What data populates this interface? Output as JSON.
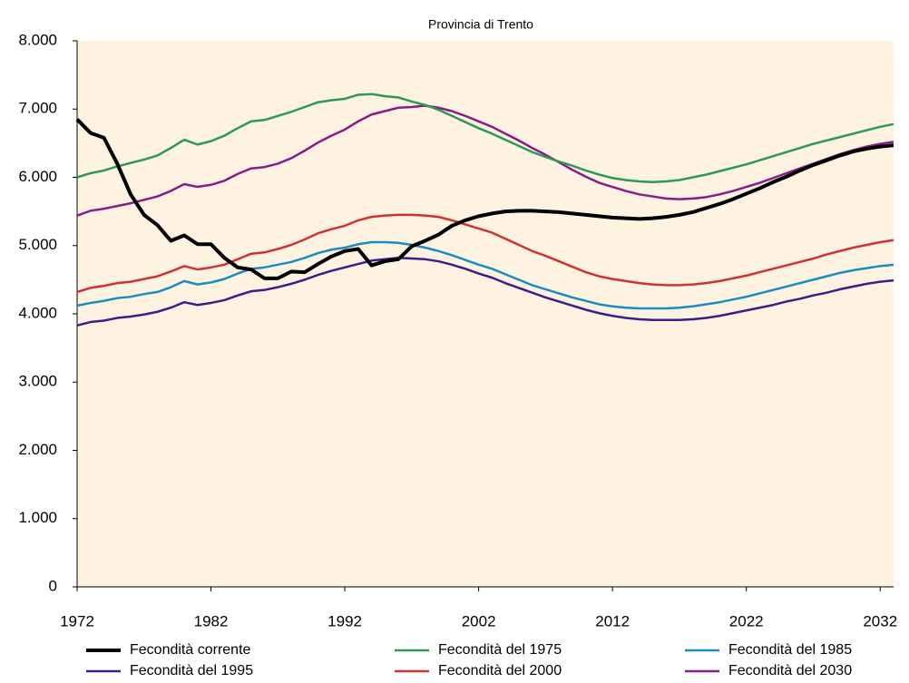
{
  "chart_data": {
    "type": "line",
    "title": "Provincia di Trento",
    "x": [
      1972,
      1973,
      1974,
      1975,
      1976,
      1977,
      1978,
      1979,
      1980,
      1981,
      1982,
      1983,
      1984,
      1985,
      1986,
      1987,
      1988,
      1989,
      1990,
      1991,
      1992,
      1993,
      1994,
      1995,
      1996,
      1997,
      1998,
      1999,
      2000,
      2001,
      2002,
      2003,
      2004,
      2005,
      2006,
      2007,
      2008,
      2009,
      2010,
      2011,
      2012,
      2013,
      2014,
      2015,
      2016,
      2017,
      2018,
      2019,
      2020,
      2021,
      2022,
      2023,
      2024,
      2025,
      2026,
      2027,
      2028,
      2029,
      2030,
      2031,
      2032,
      2033
    ],
    "series": [
      {
        "name": "Fecondità corrente",
        "color": "#000000",
        "values": [
          6850,
          6650,
          6580,
          6200,
          5750,
          5450,
          5300,
          5070,
          5150,
          5020,
          5020,
          4820,
          4680,
          4650,
          4520,
          4520,
          4620,
          4610,
          4730,
          4840,
          4920,
          4950,
          4710,
          4770,
          4800,
          4990,
          5070,
          5160,
          5290,
          5370,
          5430,
          5470,
          5500,
          5510,
          5510,
          5500,
          5490,
          5470,
          5450,
          5430,
          5410,
          5400,
          5390,
          5400,
          5420,
          5450,
          5490,
          5550,
          5610,
          5680,
          5760,
          5840,
          5930,
          6010,
          6100,
          6180,
          6250,
          6320,
          6380,
          6420,
          6450,
          6470
        ]
      },
      {
        "name": "Fecondità del 1975",
        "color": "#2a9a55",
        "values": [
          6000,
          6060,
          6100,
          6160,
          6210,
          6260,
          6320,
          6430,
          6550,
          6480,
          6530,
          6610,
          6720,
          6820,
          6840,
          6900,
          6960,
          7030,
          7100,
          7130,
          7150,
          7210,
          7220,
          7190,
          7170,
          7110,
          7060,
          6990,
          6900,
          6810,
          6720,
          6640,
          6550,
          6460,
          6370,
          6300,
          6230,
          6170,
          6100,
          6040,
          5990,
          5960,
          5940,
          5930,
          5940,
          5960,
          6000,
          6040,
          6090,
          6140,
          6190,
          6250,
          6310,
          6370,
          6430,
          6490,
          6540,
          6590,
          6640,
          6690,
          6740,
          6780
        ]
      },
      {
        "name": "Fecondità del 1985",
        "color": "#1a8cc4",
        "values": [
          4120,
          4160,
          4190,
          4230,
          4250,
          4290,
          4320,
          4390,
          4480,
          4430,
          4460,
          4510,
          4590,
          4660,
          4680,
          4720,
          4760,
          4820,
          4890,
          4940,
          4970,
          5020,
          5050,
          5050,
          5040,
          5010,
          4970,
          4920,
          4860,
          4790,
          4720,
          4660,
          4580,
          4500,
          4420,
          4360,
          4300,
          4240,
          4190,
          4140,
          4110,
          4090,
          4080,
          4080,
          4080,
          4090,
          4110,
          4140,
          4170,
          4210,
          4250,
          4300,
          4350,
          4400,
          4450,
          4500,
          4550,
          4600,
          4640,
          4670,
          4700,
          4720
        ]
      },
      {
        "name": "Fecondità del 1995",
        "color": "#3a1e8a",
        "values": [
          3830,
          3880,
          3900,
          3940,
          3960,
          3990,
          4030,
          4090,
          4170,
          4130,
          4160,
          4200,
          4270,
          4330,
          4350,
          4390,
          4440,
          4500,
          4570,
          4630,
          4680,
          4730,
          4780,
          4800,
          4820,
          4810,
          4800,
          4770,
          4720,
          4660,
          4590,
          4530,
          4450,
          4380,
          4310,
          4240,
          4180,
          4120,
          4060,
          4010,
          3970,
          3940,
          3920,
          3910,
          3910,
          3910,
          3920,
          3940,
          3970,
          4010,
          4050,
          4090,
          4130,
          4180,
          4220,
          4270,
          4310,
          4360,
          4400,
          4440,
          4470,
          4490
        ]
      },
      {
        "name": "Fecondità del 2000",
        "color": "#d03232",
        "values": [
          4320,
          4380,
          4410,
          4450,
          4470,
          4510,
          4550,
          4620,
          4700,
          4650,
          4680,
          4720,
          4800,
          4880,
          4900,
          4950,
          5010,
          5090,
          5180,
          5240,
          5290,
          5370,
          5420,
          5440,
          5450,
          5450,
          5440,
          5420,
          5370,
          5310,
          5250,
          5190,
          5100,
          5010,
          4920,
          4850,
          4770,
          4690,
          4610,
          4550,
          4510,
          4480,
          4450,
          4430,
          4420,
          4420,
          4430,
          4450,
          4480,
          4520,
          4560,
          4610,
          4660,
          4710,
          4760,
          4810,
          4870,
          4920,
          4970,
          5010,
          5050,
          5080
        ]
      },
      {
        "name": "Fecondità del 2030",
        "color": "#8a1c8a",
        "values": [
          5440,
          5510,
          5540,
          5580,
          5620,
          5670,
          5720,
          5800,
          5900,
          5860,
          5890,
          5950,
          6050,
          6130,
          6150,
          6200,
          6280,
          6390,
          6510,
          6610,
          6700,
          6820,
          6920,
          6970,
          7020,
          7030,
          7050,
          7020,
          6970,
          6900,
          6820,
          6740,
          6640,
          6540,
          6430,
          6330,
          6220,
          6110,
          6010,
          5920,
          5860,
          5800,
          5750,
          5720,
          5690,
          5680,
          5690,
          5710,
          5750,
          5800,
          5860,
          5920,
          5990,
          6060,
          6130,
          6200,
          6270,
          6340,
          6400,
          6450,
          6490,
          6520
        ]
      }
    ],
    "xlim": [
      1972,
      2033
    ],
    "xticks": [
      1972,
      1982,
      1992,
      2002,
      2012,
      2022,
      2032
    ],
    "ylim": [
      0,
      8000
    ],
    "yticks": [
      0,
      {
        "value": 1000,
        "label": "1.000"
      },
      {
        "value": 2000,
        "label": "2.000"
      },
      {
        "value": 3000,
        "label": "3.000"
      },
      {
        "value": 4000,
        "label": "4.000"
      },
      {
        "value": 5000,
        "label": "5.000"
      },
      {
        "value": 6000,
        "label": "6.000"
      },
      {
        "value": 7000,
        "label": "7.000"
      },
      {
        "value": 8000,
        "label": "8.000"
      }
    ],
    "plot_background": "#fdf3e0"
  }
}
